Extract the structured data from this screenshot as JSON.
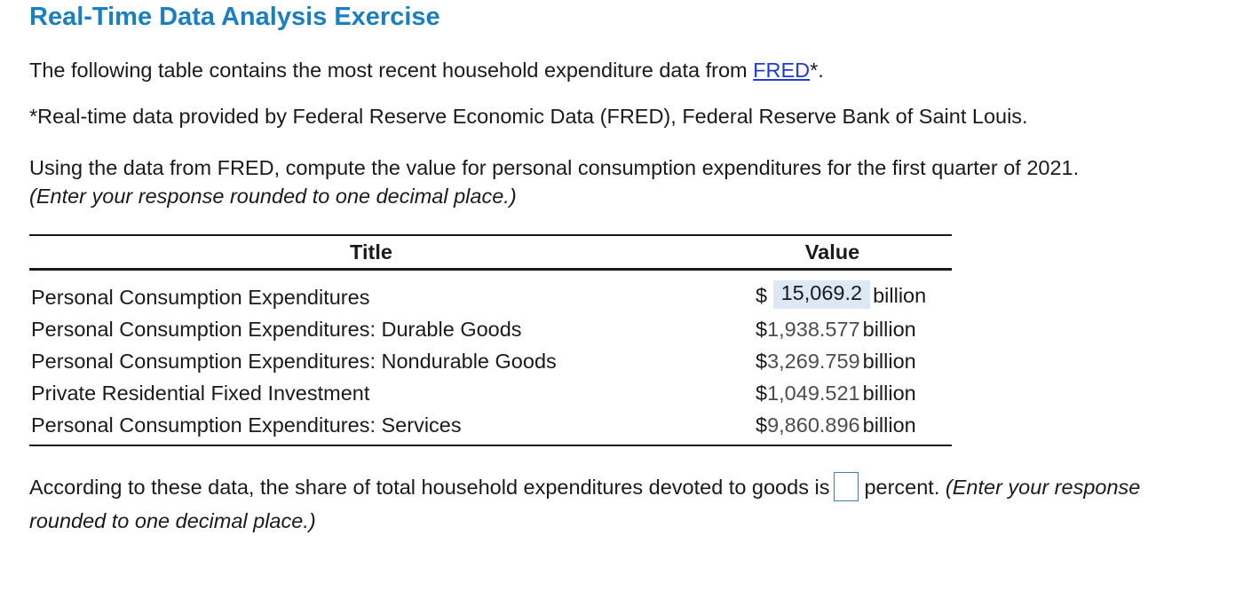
{
  "title": "Real-Time Data Analysis Exercise",
  "intro": {
    "before": "The following table contains the most recent household expenditure data from ",
    "link": "FRED",
    "after": "*."
  },
  "footnote": "*Real-time data provided by Federal Reserve Economic Data (FRED), Federal Reserve Bank of Saint Louis.",
  "question": {
    "text": "Using the data from FRED, compute the value for personal consumption expenditures for the first quarter of 2021.",
    "hint": "(Enter your response rounded to one decimal place.)"
  },
  "table": {
    "headers": {
      "title": "Title",
      "value": "Value"
    },
    "rows": [
      {
        "label": "Personal Consumption Expenditures",
        "dollar": "$",
        "value": "15,069.2",
        "unit": "billion",
        "is_answer": true
      },
      {
        "label": "Personal Consumption Expenditures: Durable Goods",
        "dollar": "$",
        "value": "1,938.577",
        "unit": "billion"
      },
      {
        "label": "Personal Consumption Expenditures: Nondurable Goods",
        "dollar": "$",
        "value": "3,269.759",
        "unit": "billion"
      },
      {
        "label": "Private Residential Fixed Investment",
        "dollar": "$",
        "value": "1,049.521",
        "unit": "billion"
      },
      {
        "label": "Personal Consumption Expenditures: Services",
        "dollar": "$",
        "value": "9,860.896",
        "unit": "billion"
      }
    ]
  },
  "share": {
    "before": "According to these data, the share of total household expenditures devoted to goods is",
    "input_value": "",
    "after": "percent.",
    "hint": "(Enter your response rounded to one decimal place.)"
  },
  "colors": {
    "title": "#1a7fc1",
    "link": "#1f3bd6",
    "answer_highlight": "#dde8f5",
    "input_border": "#3e7dc0"
  }
}
